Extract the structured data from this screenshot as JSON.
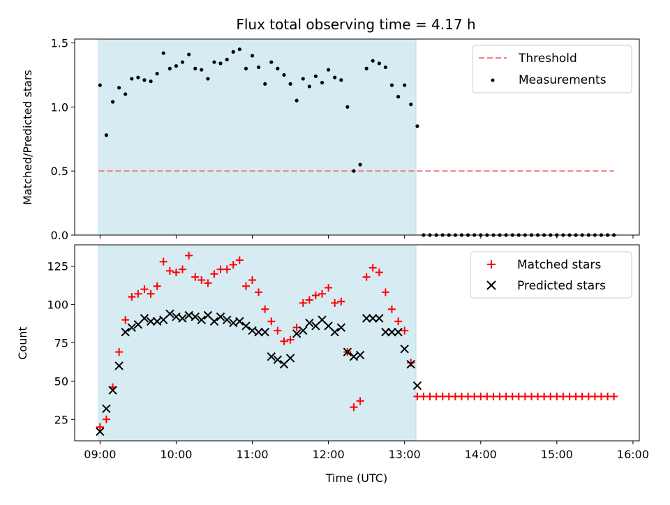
{
  "chart_data": [
    {
      "type": "scatter",
      "title": "Flux total observing time = 4.17 h",
      "ylabel": "Matched/Predicted stars",
      "xlabel": "",
      "x_unit": "hours (UTC)",
      "xlim": [
        8.667,
        16.083
      ],
      "ylim": [
        0,
        1.53
      ],
      "yticks": [
        0.0,
        0.5,
        1.0,
        1.5
      ],
      "ytick_labels": [
        "0.0",
        "0.5",
        "1.0",
        "1.5"
      ],
      "shaded_span": [
        8.983,
        13.15
      ],
      "threshold": {
        "label": "Threshold",
        "y": 0.5,
        "x_range": [
          8.983,
          15.75
        ],
        "color": "#f08080"
      },
      "legend": {
        "position": "top-right",
        "entries": [
          "Threshold",
          "Measurements"
        ]
      },
      "series": [
        {
          "name": "Measurements",
          "color": "#000000",
          "x": [
            9.0,
            9.083,
            9.167,
            9.25,
            9.333,
            9.417,
            9.5,
            9.583,
            9.667,
            9.75,
            9.833,
            9.917,
            10.0,
            10.083,
            10.167,
            10.25,
            10.333,
            10.417,
            10.5,
            10.583,
            10.667,
            10.75,
            10.833,
            10.917,
            11.0,
            11.083,
            11.167,
            11.25,
            11.333,
            11.417,
            11.5,
            11.583,
            11.667,
            11.75,
            11.833,
            11.917,
            12.0,
            12.083,
            12.167,
            12.25,
            12.333,
            12.417,
            12.5,
            12.583,
            12.667,
            12.75,
            12.833,
            12.917,
            13.0,
            13.083,
            13.167,
            13.25,
            13.333,
            13.417,
            13.5,
            13.583,
            13.667,
            13.75,
            13.833,
            13.917,
            14.0,
            14.083,
            14.167,
            14.25,
            14.333,
            14.417,
            14.5,
            14.583,
            14.667,
            14.75,
            14.833,
            14.917,
            15.0,
            15.083,
            15.167,
            15.25,
            15.333,
            15.417,
            15.5,
            15.583,
            15.667,
            15.75
          ],
          "y": [
            1.17,
            0.78,
            1.04,
            1.15,
            1.1,
            1.22,
            1.23,
            1.21,
            1.2,
            1.26,
            1.42,
            1.3,
            1.32,
            1.35,
            1.41,
            1.3,
            1.29,
            1.22,
            1.35,
            1.34,
            1.37,
            1.43,
            1.45,
            1.3,
            1.4,
            1.31,
            1.18,
            1.35,
            1.3,
            1.25,
            1.18,
            1.05,
            1.22,
            1.16,
            1.24,
            1.19,
            1.29,
            1.23,
            1.21,
            1.0,
            0.5,
            0.55,
            1.3,
            1.36,
            1.34,
            1.31,
            1.17,
            1.08,
            1.17,
            1.02,
            0.85,
            0,
            0,
            0,
            0,
            0,
            0,
            0,
            0,
            0,
            0,
            0,
            0,
            0,
            0,
            0,
            0,
            0,
            0,
            0,
            0,
            0,
            0,
            0,
            0,
            0,
            0,
            0,
            0,
            0,
            0,
            0
          ]
        }
      ]
    },
    {
      "type": "scatter",
      "title": "",
      "ylabel": "Count",
      "xlabel": "Time (UTC)",
      "x_unit": "hours (UTC)",
      "xlim": [
        8.667,
        16.083
      ],
      "ylim": [
        11,
        139
      ],
      "xticks": [
        9,
        10,
        11,
        12,
        13,
        14,
        15,
        16
      ],
      "xtick_labels": [
        "09:00",
        "10:00",
        "11:00",
        "12:00",
        "13:00",
        "14:00",
        "15:00",
        "16:00"
      ],
      "yticks": [
        25,
        50,
        75,
        100,
        125
      ],
      "ytick_labels": [
        "25",
        "50",
        "75",
        "100",
        "125"
      ],
      "shaded_span": [
        8.983,
        13.15
      ],
      "legend": {
        "position": "top-right",
        "entries": [
          "Matched stars",
          "Predicted stars"
        ]
      },
      "series": [
        {
          "name": "Matched stars",
          "marker": "plus",
          "color": "#ff0000",
          "x": [
            9.0,
            9.083,
            9.167,
            9.25,
            9.333,
            9.417,
            9.5,
            9.583,
            9.667,
            9.75,
            9.833,
            9.917,
            10.0,
            10.083,
            10.167,
            10.25,
            10.333,
            10.417,
            10.5,
            10.583,
            10.667,
            10.75,
            10.833,
            10.917,
            11.0,
            11.083,
            11.167,
            11.25,
            11.333,
            11.417,
            11.5,
            11.583,
            11.667,
            11.75,
            11.833,
            11.917,
            12.0,
            12.083,
            12.167,
            12.25,
            12.333,
            12.417,
            12.5,
            12.583,
            12.667,
            12.75,
            12.833,
            12.917,
            13.0,
            13.083,
            13.167,
            13.25,
            13.333,
            13.417,
            13.5,
            13.583,
            13.667,
            13.75,
            13.833,
            13.917,
            14.0,
            14.083,
            14.167,
            14.25,
            14.333,
            14.417,
            14.5,
            14.583,
            14.667,
            14.75,
            14.833,
            14.917,
            15.0,
            15.083,
            15.167,
            15.25,
            15.333,
            15.417,
            15.5,
            15.583,
            15.667,
            15.75
          ],
          "y": [
            20,
            25,
            46,
            69,
            90,
            105,
            107,
            110,
            107,
            112,
            128,
            122,
            121,
            123,
            132,
            118,
            116,
            114,
            120,
            123,
            123,
            126,
            129,
            112,
            116,
            108,
            97,
            89,
            83,
            76,
            77,
            85,
            101,
            103,
            106,
            107,
            111,
            101,
            102,
            69,
            33,
            37,
            118,
            124,
            121,
            108,
            97,
            89,
            83,
            62,
            40,
            40,
            40,
            40,
            40,
            40,
            40,
            40,
            40,
            40,
            40,
            40,
            40,
            40,
            40,
            40,
            40,
            40,
            40,
            40,
            40,
            40,
            40,
            40,
            40,
            40,
            40,
            40,
            40,
            40,
            40,
            40
          ]
        },
        {
          "name": "Predicted stars",
          "marker": "x",
          "color": "#000000",
          "x": [
            9.0,
            9.083,
            9.167,
            9.25,
            9.333,
            9.417,
            9.5,
            9.583,
            9.667,
            9.75,
            9.833,
            9.917,
            10.0,
            10.083,
            10.167,
            10.25,
            10.333,
            10.417,
            10.5,
            10.583,
            10.667,
            10.75,
            10.833,
            10.917,
            11.0,
            11.083,
            11.167,
            11.25,
            11.333,
            11.417,
            11.5,
            11.583,
            11.667,
            11.75,
            11.833,
            11.917,
            12.0,
            12.083,
            12.167,
            12.25,
            12.333,
            12.417,
            12.5,
            12.583,
            12.667,
            12.75,
            12.833,
            12.917,
            13.0,
            13.083,
            13.167
          ],
          "y": [
            17,
            32,
            44,
            60,
            82,
            85,
            87,
            91,
            89,
            89,
            90,
            94,
            92,
            91,
            93,
            92,
            90,
            93,
            89,
            92,
            90,
            88,
            89,
            86,
            83,
            82,
            82,
            66,
            64,
            61,
            65,
            81,
            83,
            88,
            86,
            90,
            86,
            82,
            85,
            69,
            66,
            67,
            91,
            91,
            91,
            82,
            82,
            82,
            71,
            61,
            47
          ]
        }
      ]
    }
  ]
}
